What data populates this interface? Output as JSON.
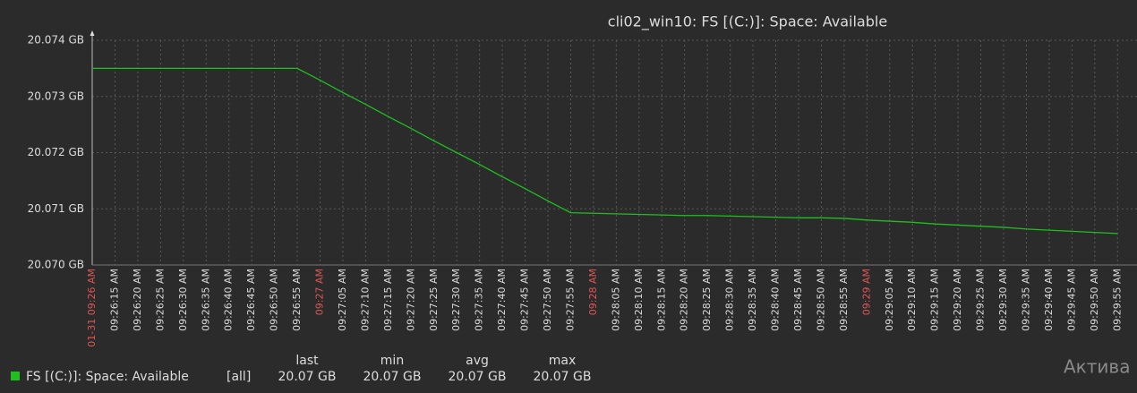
{
  "chart_data": {
    "type": "line",
    "title": "cli02_win10: FS [(C:)]: Space: Available",
    "categories": [
      "01-31 09:26 AM",
      "09:26:15 AM",
      "09:26:20 AM",
      "09:26:25 AM",
      "09:26:30 AM",
      "09:26:35 AM",
      "09:26:40 AM",
      "09:26:45 AM",
      "09:26:50 AM",
      "09:26:55 AM",
      "09:27 AM",
      "09:27:05 AM",
      "09:27:10 AM",
      "09:27:15 AM",
      "09:27:20 AM",
      "09:27:25 AM",
      "09:27:30 AM",
      "09:27:35 AM",
      "09:27:40 AM",
      "09:27:45 AM",
      "09:27:50 AM",
      "09:27:55 AM",
      "09:28 AM",
      "09:28:05 AM",
      "09:28:10 AM",
      "09:28:15 AM",
      "09:28:20 AM",
      "09:28:25 AM",
      "09:28:30 AM",
      "09:28:35 AM",
      "09:28:40 AM",
      "09:28:45 AM",
      "09:28:50 AM",
      "09:28:55 AM",
      "09:29 AM",
      "09:29:05 AM",
      "09:29:10 AM",
      "09:29:15 AM",
      "09:29:20 AM",
      "09:29:25 AM",
      "09:29:30 AM",
      "09:29:35 AM",
      "09:29:40 AM",
      "09:29:45 AM",
      "09:29:50 AM",
      "09:29:55 AM"
    ],
    "series": [
      {
        "name": "FS [(C:)]: Space: Available",
        "color": "#1fbf1f",
        "values": [
          20.0735,
          20.0735,
          20.0735,
          20.0735,
          20.0735,
          20.0735,
          20.0735,
          20.0735,
          20.0735,
          20.0735,
          20.07329,
          20.07307,
          20.07286,
          20.07264,
          20.07243,
          20.07221,
          20.072,
          20.07179,
          20.07157,
          20.07136,
          20.07114,
          20.07093,
          20.07092,
          20.07091,
          20.0709,
          20.07089,
          20.07088,
          20.07088,
          20.07087,
          20.07086,
          20.07085,
          20.07084,
          20.07084,
          20.07083,
          20.0708,
          20.07078,
          20.07076,
          20.07073,
          20.07071,
          20.07069,
          20.07067,
          20.07064,
          20.07062,
          20.0706,
          20.07058,
          20.07056
        ]
      }
    ],
    "ylim": [
      20.07,
      20.074
    ],
    "yticks": [
      {
        "value": 20.07,
        "label": "20.070 GB"
      },
      {
        "value": 20.071,
        "label": "20.071 GB"
      },
      {
        "value": 20.072,
        "label": "20.072 GB"
      },
      {
        "value": 20.073,
        "label": "20.073 GB"
      },
      {
        "value": 20.074,
        "label": "20.074 GB"
      }
    ],
    "grid": true,
    "major_tick_color": "#e05555",
    "legend": {
      "function": "[all]",
      "headers": [
        "last",
        "min",
        "avg",
        "max"
      ],
      "values": [
        "20.07 GB",
        "20.07 GB",
        "20.07 GB",
        "20.07 GB"
      ]
    },
    "watermark": "Актива"
  }
}
